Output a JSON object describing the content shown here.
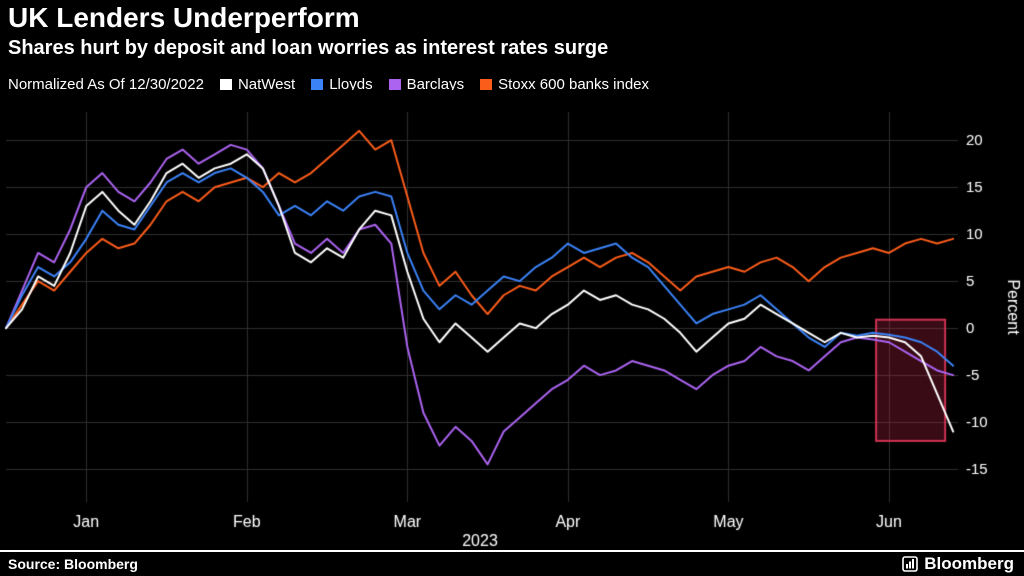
{
  "header": {
    "title": "UK Lenders Underperform",
    "subtitle": "Shares hurt by deposit and loan worries as interest rates surge"
  },
  "legend": {
    "prefix": "Normalized As Of 12/30/2022",
    "items": [
      {
        "label": "NatWest",
        "color": "#ffffff"
      },
      {
        "label": "Lloyds",
        "color": "#3b82f6"
      },
      {
        "label": "Barclays",
        "color": "#ab63f0"
      },
      {
        "label": "Stoxx 600 banks index",
        "color": "#fa5c1a"
      }
    ]
  },
  "footer": {
    "source": "Source: Bloomberg",
    "brand": "Bloomberg"
  },
  "chart_data": {
    "type": "line",
    "title": "UK Lenders Underperform",
    "subtitle": "Shares hurt by deposit and loan worries as interest rates surge",
    "ylabel": "Percent",
    "x_axis_year": "2023",
    "x_unit": "months since 2022-12-30",
    "x_tick_labels": [
      "Jan",
      "Feb",
      "Mar",
      "Apr",
      "May",
      "Jun"
    ],
    "x_tick_positions": [
      0.5,
      1.5,
      2.5,
      3.5,
      4.5,
      5.5
    ],
    "xlim": [
      0,
      5.93
    ],
    "ylim": [
      -18.5,
      23
    ],
    "y_ticks": [
      20,
      15,
      10,
      5,
      0,
      -5,
      -10,
      -15
    ],
    "grid": true,
    "grid_color": "#2e2e2e",
    "legend_position": "top",
    "x_start": 0,
    "x_step": 0.1,
    "highlight_box": {
      "x0": 5.42,
      "x1": 5.85,
      "y0": -12,
      "y1": 0.9,
      "fill": "rgba(201,38,74,0.28)",
      "stroke": "rgba(225,55,90,0.9)"
    },
    "series": [
      {
        "name": "Stoxx 600 banks index",
        "color": "#fa5c1a",
        "values": [
          0,
          2.5,
          5,
          4,
          6,
          8,
          9.5,
          8.5,
          9,
          11,
          13.5,
          14.5,
          13.5,
          15,
          15.5,
          16,
          15,
          16.5,
          15.5,
          16.5,
          18,
          19.5,
          21,
          19,
          20,
          14,
          8,
          4.5,
          6,
          3.5,
          1.5,
          3.5,
          4.5,
          4,
          5.5,
          6.5,
          7.5,
          6.5,
          7.5,
          8,
          7,
          5.5,
          4,
          5.5,
          6,
          6.5,
          6,
          7,
          7.5,
          6.5,
          5,
          6.5,
          7.5,
          8,
          8.5,
          8,
          9,
          9.5,
          9,
          9.5
        ]
      },
      {
        "name": "Barclays",
        "color": "#ab63f0",
        "values": [
          0,
          4,
          8,
          7,
          10.5,
          15,
          16.5,
          14.5,
          13.5,
          15.5,
          18,
          19,
          17.5,
          18.5,
          19.5,
          19,
          17,
          13,
          9,
          8,
          9.5,
          8,
          10.5,
          11,
          9,
          -2,
          -9,
          -12.5,
          -10.5,
          -12,
          -14.5,
          -11,
          -9.5,
          -8,
          -6.5,
          -5.5,
          -4,
          -5,
          -4.5,
          -3.5,
          -4,
          -4.5,
          -5.5,
          -6.5,
          -5,
          -4,
          -3.5,
          -2,
          -3,
          -3.5,
          -4.5,
          -3,
          -1.5,
          -1,
          -1.2,
          -1.5,
          -2.5,
          -3.5,
          -4.5,
          -5
        ]
      },
      {
        "name": "Lloyds",
        "color": "#3b82f6",
        "values": [
          0,
          3.5,
          6.5,
          5.5,
          7,
          9.5,
          12.5,
          11,
          10.5,
          13,
          15.5,
          16.5,
          15.5,
          16.5,
          17,
          16,
          14.5,
          12,
          13,
          12,
          13.5,
          12.5,
          14,
          14.5,
          14,
          8,
          4,
          2,
          3.5,
          2.5,
          4,
          5.5,
          5,
          6.5,
          7.5,
          9,
          8,
          8.5,
          9,
          7.5,
          6.5,
          4.5,
          2.5,
          0.5,
          1.5,
          2,
          2.5,
          3.5,
          2,
          0.5,
          -1,
          -2,
          -0.5,
          -0.8,
          -0.5,
          -0.7,
          -1,
          -1.5,
          -2.5,
          -4
        ]
      },
      {
        "name": "NatWest",
        "color": "#ffffff",
        "values": [
          0,
          2,
          5.5,
          4.5,
          8,
          13,
          14.5,
          12.5,
          11,
          13.5,
          16.5,
          17.5,
          16,
          17,
          17.5,
          18.5,
          17,
          13,
          8,
          7,
          8.5,
          7.5,
          10.5,
          12.5,
          12,
          6,
          1,
          -1.5,
          0.5,
          -1,
          -2.5,
          -1,
          0.5,
          0,
          1.5,
          2.5,
          4,
          3,
          3.5,
          2.5,
          2,
          1,
          -0.5,
          -2.5,
          -1,
          0.5,
          1,
          2.5,
          1.5,
          0.5,
          -0.5,
          -1.5,
          -0.5,
          -1,
          -0.8,
          -1,
          -1.5,
          -3,
          -7,
          -11
        ]
      }
    ]
  }
}
